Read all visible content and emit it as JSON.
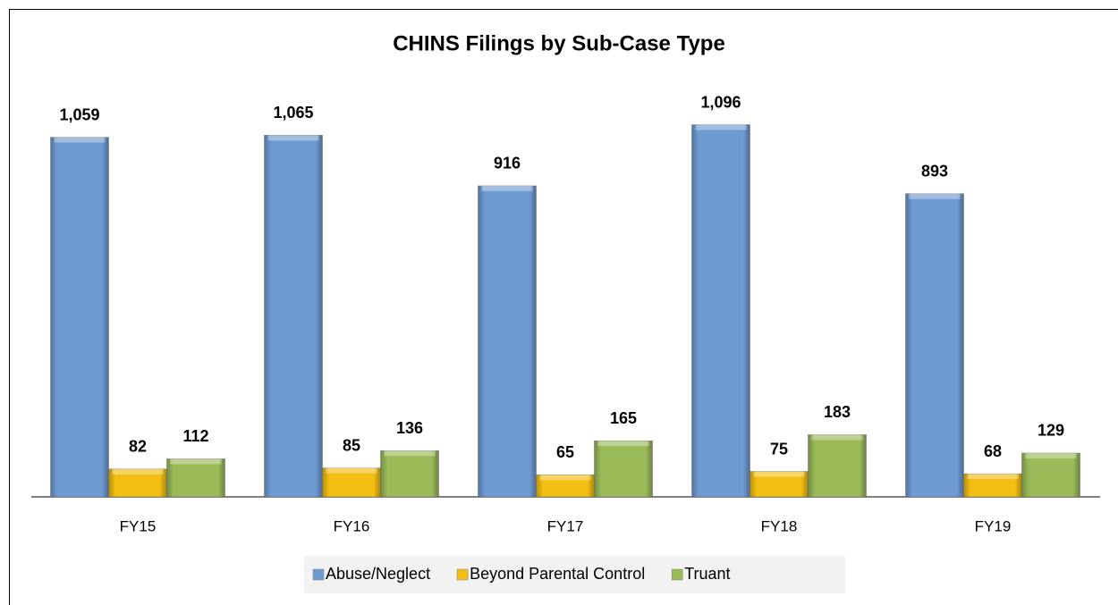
{
  "chart_data": {
    "type": "bar",
    "title": "CHINS Filings by Sub-Case Type",
    "categories": [
      "FY15",
      "FY16",
      "FY17",
      "FY18",
      "FY19"
    ],
    "series": [
      {
        "name": "Abuse/Neglect",
        "color": "#6f9bd3",
        "values": [
          1059,
          1065,
          916,
          1096,
          893
        ],
        "value_labels": [
          "1,059",
          "1,065",
          "916",
          "1,096",
          "893"
        ]
      },
      {
        "name": "Beyond Parental Control",
        "color": "#f3bf12",
        "values": [
          82,
          85,
          65,
          75,
          68
        ]
      },
      {
        "name": "Truant",
        "color": "#9bbb59",
        "values": [
          112,
          136,
          165,
          183,
          129
        ]
      }
    ],
    "legend": "bottom"
  }
}
